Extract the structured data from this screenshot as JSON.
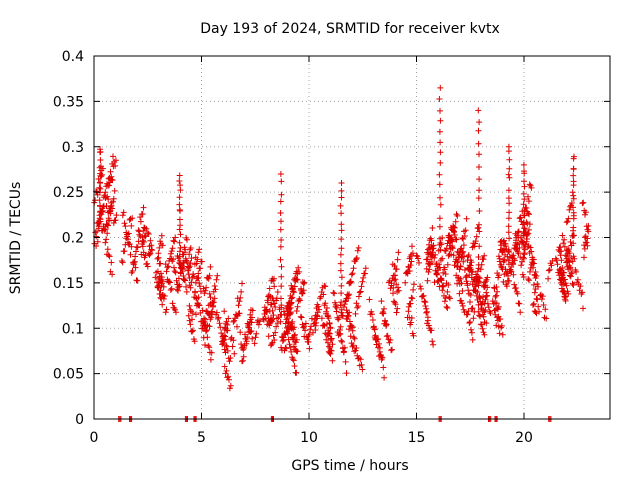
{
  "chart_data": {
    "type": "scatter",
    "title": "Day 193 of 2024, SRMTID for receiver kvtx",
    "xlabel": "GPS time / hours",
    "ylabel": "SRMTID / TECUs",
    "xlim": [
      0,
      24
    ],
    "ylim": [
      0,
      0.4
    ],
    "x_ticks": [
      0,
      5,
      10,
      15,
      20
    ],
    "x_tick_labels": [
      "0",
      "5",
      "10",
      "15",
      "20"
    ],
    "y_ticks": [
      0,
      0.05,
      0.1,
      0.15,
      0.2,
      0.25,
      0.3,
      0.35,
      0.4
    ],
    "y_tick_labels": [
      "0",
      "0.05",
      "0.1",
      "0.15",
      "0.2",
      "0.25",
      "0.3",
      "0.35",
      "0.4"
    ],
    "grid": true,
    "marker": "+",
    "color": "#e00000",
    "data_range_hours": [
      0,
      23
    ],
    "trend": {
      "x": [
        0,
        0.5,
        1,
        2,
        3,
        4,
        5,
        5.5,
        6,
        7,
        8,
        9,
        10,
        11,
        12,
        13,
        14,
        15,
        16,
        16.5,
        17,
        18,
        19,
        20,
        21,
        22,
        23
      ],
      "y": [
        0.22,
        0.23,
        0.2,
        0.18,
        0.16,
        0.17,
        0.13,
        0.1,
        0.09,
        0.09,
        0.1,
        0.11,
        0.1,
        0.11,
        0.13,
        0.12,
        0.14,
        0.16,
        0.17,
        0.2,
        0.17,
        0.14,
        0.17,
        0.18,
        0.16,
        0.19,
        0.2
      ]
    },
    "spikes": [
      {
        "x": 0.3,
        "y": 0.3
      },
      {
        "x": 4.0,
        "y": 0.27
      },
      {
        "x": 8.7,
        "y": 0.27
      },
      {
        "x": 11.5,
        "y": 0.26
      },
      {
        "x": 16.1,
        "y": 0.365
      },
      {
        "x": 17.9,
        "y": 0.34
      },
      {
        "x": 19.3,
        "y": 0.3
      },
      {
        "x": 20.0,
        "y": 0.28
      },
      {
        "x": 22.3,
        "y": 0.29
      }
    ],
    "zero_points_x": [
      1.2,
      1.7,
      4.3,
      4.7,
      8.3,
      16.1,
      18.4,
      18.7,
      21.2
    ]
  }
}
